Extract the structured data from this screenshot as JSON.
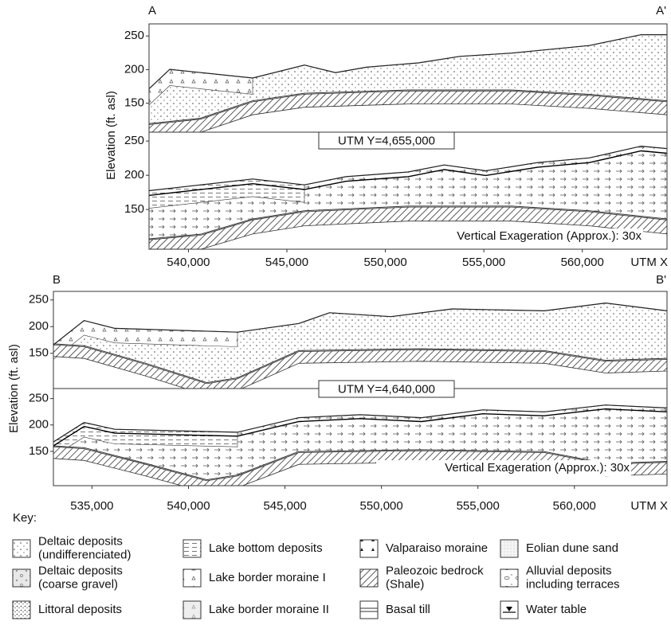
{
  "sections": [
    {
      "start": "A",
      "end": "A'",
      "y_label": "Elevation (ft. asl)",
      "utm_label": "UTM Y=4,655,000",
      "note": "Vertical Exageration (Approx.): 30x",
      "x_axis_label": "UTM X",
      "xlim": [
        538000,
        564300
      ],
      "xticks": [
        {
          "value": 540000,
          "label": "540,000"
        },
        {
          "value": 545000,
          "label": "545,000"
        },
        {
          "value": 550000,
          "label": "550,000"
        },
        {
          "value": 555000,
          "label": "555,000"
        },
        {
          "value": 560000,
          "label": "560,000"
        }
      ],
      "panels": [
        {
          "ylim": [
            107,
            268
          ],
          "yticks": [
            150,
            200,
            250
          ]
        },
        {
          "ylim": [
            92,
            263
          ],
          "yticks": [
            150,
            200,
            250
          ]
        }
      ]
    },
    {
      "start": "B",
      "end": "B'",
      "y_label": "Elevation (ft. asl)",
      "utm_label": "UTM Y=4,640,000",
      "note": "Vertical Exageration (Approx.): 30x",
      "x_axis_label": "UTM X",
      "xlim": [
        533000,
        564800
      ],
      "xticks": [
        {
          "value": 535000,
          "label": "535,000"
        },
        {
          "value": 540000,
          "label": "540,000"
        },
        {
          "value": 545000,
          "label": "545,000"
        },
        {
          "value": 550000,
          "label": "550,000"
        },
        {
          "value": 555000,
          "label": "555,000"
        },
        {
          "value": 560000,
          "label": "560,000"
        }
      ],
      "panels": [
        {
          "ylim": [
            84,
            266
          ],
          "yticks": [
            150,
            200,
            250
          ]
        },
        {
          "ylim": [
            85,
            269
          ],
          "yticks": [
            150,
            200,
            250
          ]
        }
      ]
    }
  ],
  "key": {
    "title": "Key:",
    "items": [
      {
        "lines": [
          "Deltaic deposits",
          "(undifferenciated)"
        ]
      },
      {
        "lines": [
          "Deltaic deposits",
          "(coarse gravel)"
        ]
      },
      {
        "lines": [
          "Littoral deposits"
        ]
      },
      {
        "lines": [
          "Lake bottom deposits"
        ]
      },
      {
        "lines": [
          "Lake border moraine I"
        ]
      },
      {
        "lines": [
          "Lake border moraine II"
        ]
      },
      {
        "lines": [
          "Valparaiso moraine"
        ]
      },
      {
        "lines": [
          "Paleozoic bedrock",
          "(Shale)"
        ]
      },
      {
        "lines": [
          "Basal till"
        ]
      },
      {
        "lines": [
          "Eolian dune sand"
        ]
      },
      {
        "lines": [
          "Alluvial deposits",
          "including terraces"
        ]
      },
      {
        "lines": [
          "Water table"
        ]
      }
    ]
  }
}
